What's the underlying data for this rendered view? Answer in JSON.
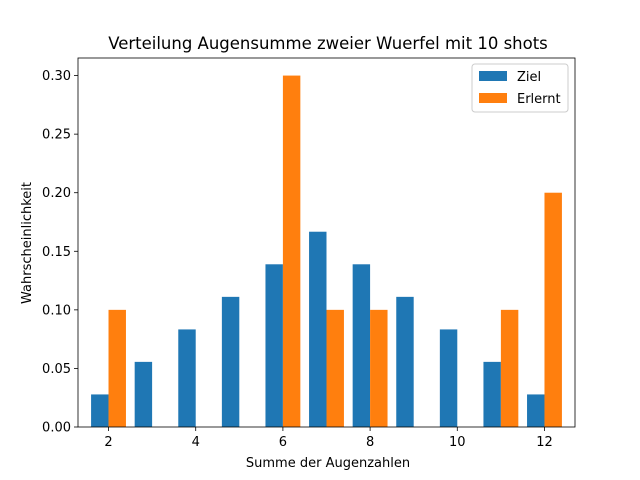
{
  "chart_data": {
    "type": "bar",
    "title": "Verteilung Augensumme zweier Wuerfel mit 10 shots",
    "xlabel": "Summe der Augenzahlen",
    "ylabel": "Wahrscheinlichkeit",
    "x": [
      2,
      3,
      4,
      5,
      6,
      7,
      8,
      9,
      10,
      11,
      12
    ],
    "series": [
      {
        "name": "Ziel",
        "color": "#1f77b4",
        "values": [
          0.0278,
          0.0556,
          0.0833,
          0.1111,
          0.1389,
          0.1667,
          0.1389,
          0.1111,
          0.0833,
          0.0556,
          0.0278
        ]
      },
      {
        "name": "Erlernt",
        "color": "#ff7f0e",
        "values": [
          0.1,
          0,
          0,
          0,
          0.3,
          0.1,
          0.1,
          0,
          0,
          0.1,
          0.2
        ]
      }
    ],
    "xlim": [
      1.3,
      12.7
    ],
    "ylim": [
      0,
      0.315
    ],
    "xticks": [
      "2",
      "4",
      "6",
      "8",
      "10",
      "12"
    ],
    "xtick_values": [
      2,
      4,
      6,
      8,
      10,
      12
    ],
    "yticks": [
      "0.00",
      "0.05",
      "0.10",
      "0.15",
      "0.20",
      "0.25",
      "0.30"
    ],
    "ytick_values": [
      0,
      0.05,
      0.1,
      0.15,
      0.2,
      0.25,
      0.3
    ],
    "grid": false,
    "legend_position": "top-right"
  }
}
